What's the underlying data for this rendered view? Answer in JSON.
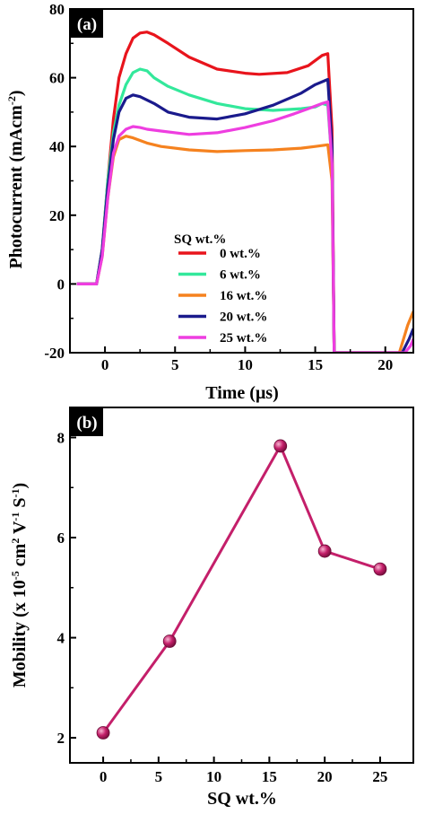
{
  "chart_data": [
    {
      "panel": "(a)",
      "type": "line",
      "xlabel": "Time (μs)",
      "ylabel_parts": [
        "Photocurrent (mAcm",
        "-2",
        ")"
      ],
      "xlim": [
        -2.5,
        22
      ],
      "ylim": [
        -20,
        80
      ],
      "xticks": [
        0,
        5,
        10,
        15,
        20
      ],
      "yticks": [
        -20,
        0,
        20,
        40,
        60,
        80
      ],
      "legend_title": "SQ wt.%",
      "legend_position": "center-left",
      "series": [
        {
          "name": "0 wt.%",
          "color": "#e8141c",
          "x": [
            -2,
            -0.6,
            -0.2,
            0.2,
            0.6,
            1.0,
            1.5,
            2.0,
            2.5,
            3.0,
            3.5,
            4.5,
            6.0,
            8.0,
            10.0,
            11.0,
            13.0,
            14.5,
            15.5,
            15.9,
            16.2,
            16.35
          ],
          "y": [
            0,
            0,
            10,
            30,
            48,
            60,
            67,
            71.5,
            73,
            73.3,
            72.5,
            70,
            66,
            62.5,
            61.3,
            61,
            61.5,
            63.5,
            66.5,
            67,
            45,
            -20
          ]
        },
        {
          "name": "6 wt.%",
          "color": "#33e89b",
          "x": [
            -2,
            -0.6,
            -0.2,
            0.2,
            0.6,
            1.0,
            1.5,
            2.0,
            2.5,
            3.0,
            3.5,
            4.5,
            6.0,
            8.0,
            10.0,
            12.0,
            14.0,
            15.0,
            15.5,
            15.9,
            16.2,
            16.35
          ],
          "y": [
            0,
            0,
            10,
            30,
            44,
            52,
            58,
            61.5,
            62.5,
            62,
            60,
            57.5,
            55,
            52.5,
            51,
            50.5,
            51,
            51.5,
            52.5,
            52,
            35,
            -20
          ]
        },
        {
          "name": "16 wt.%",
          "color": "#f5821f",
          "x": [
            -2,
            -0.6,
            -0.2,
            0.2,
            0.6,
            1.0,
            1.5,
            2.0,
            3.0,
            4.0,
            6.0,
            8.0,
            10.0,
            12.0,
            14.0,
            15.0,
            15.9,
            16.2,
            16.35,
            21.0,
            21.6,
            22.0
          ],
          "y": [
            0,
            0,
            8,
            25,
            37,
            42,
            43,
            42.5,
            41,
            40,
            39,
            38.5,
            38.8,
            39,
            39.5,
            40,
            40.5,
            30,
            -20,
            -20,
            -12,
            -8
          ]
        },
        {
          "name": "20 wt.%",
          "color": "#1a1a8c",
          "x": [
            -2,
            -0.6,
            -0.2,
            0.2,
            0.6,
            1.0,
            1.5,
            2.0,
            2.5,
            3.5,
            4.5,
            6.0,
            8.0,
            10.0,
            12.0,
            14.0,
            15.0,
            15.9,
            16.2,
            16.35,
            21.2,
            21.7,
            22.0
          ],
          "y": [
            0,
            0,
            10,
            28,
            42,
            50,
            54,
            55,
            54.5,
            52.5,
            50,
            48.5,
            48,
            49.5,
            52,
            55.5,
            58,
            59.5,
            40,
            -20,
            -20,
            -16,
            -13
          ]
        },
        {
          "name": "25 wt.%",
          "color": "#ee3ee0",
          "x": [
            -2,
            -0.6,
            -0.2,
            0.2,
            0.6,
            1.0,
            1.5,
            2.0,
            2.5,
            3.0,
            4.0,
            6.0,
            8.0,
            10.0,
            12.0,
            13.5,
            14.5,
            15.5,
            15.9,
            16.2,
            16.35,
            21.4,
            21.8,
            22.0
          ],
          "y": [
            0,
            0,
            8,
            25,
            38,
            43,
            45,
            45.8,
            45.5,
            45,
            44.5,
            43.5,
            44,
            45.5,
            47.5,
            49.5,
            51,
            52.5,
            53,
            35,
            -20,
            -20,
            -18,
            -16
          ]
        }
      ]
    },
    {
      "panel": "(b)",
      "type": "line",
      "xlabel": "SQ wt.%",
      "ylabel_parts": [
        "Mobility (x 10",
        "-5",
        " cm",
        "2",
        " V",
        "-1",
        " S",
        "-1",
        ")"
      ],
      "xlim": [
        -3,
        28
      ],
      "ylim": [
        1.5,
        8.6
      ],
      "xticks": [
        0,
        5,
        10,
        15,
        20,
        25
      ],
      "yticks": [
        2,
        4,
        6,
        8
      ],
      "color": "#c41f6a",
      "x": [
        0,
        6,
        16,
        20,
        25
      ],
      "y": [
        2.1,
        3.93,
        7.83,
        5.73,
        5.37
      ]
    }
  ]
}
